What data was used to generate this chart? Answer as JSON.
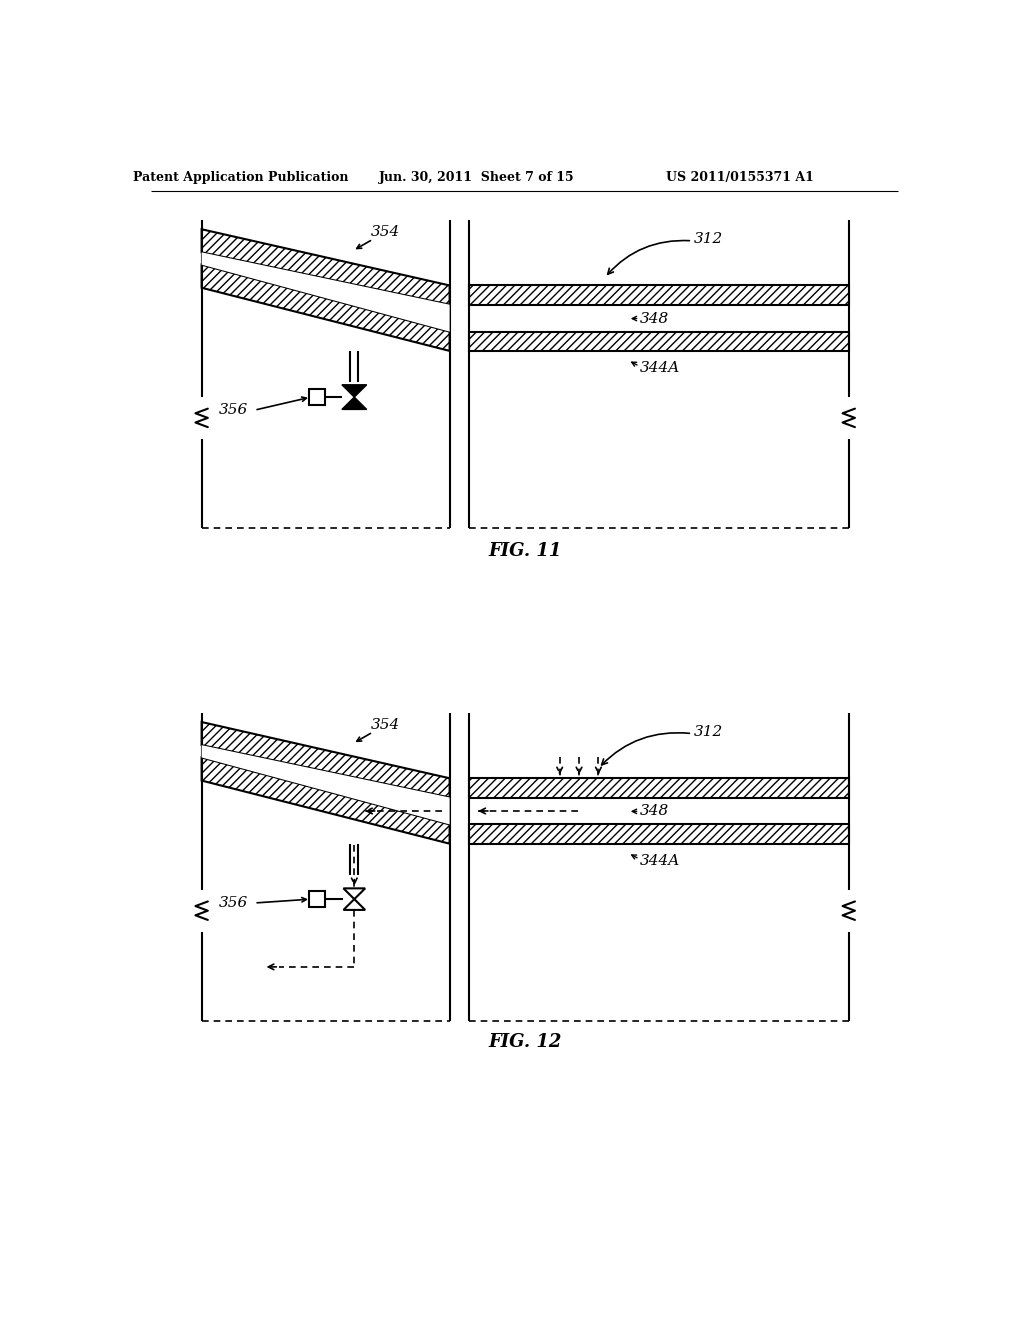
{
  "page_header_left": "Patent Application Publication",
  "page_header_center": "Jun. 30, 2011  Sheet 7 of 15",
  "page_header_right": "US 2011/0155371 A1",
  "fig11_caption": "FIG. 11",
  "fig12_caption": "FIG. 12",
  "bg_color": "#ffffff",
  "line_color": "#000000"
}
